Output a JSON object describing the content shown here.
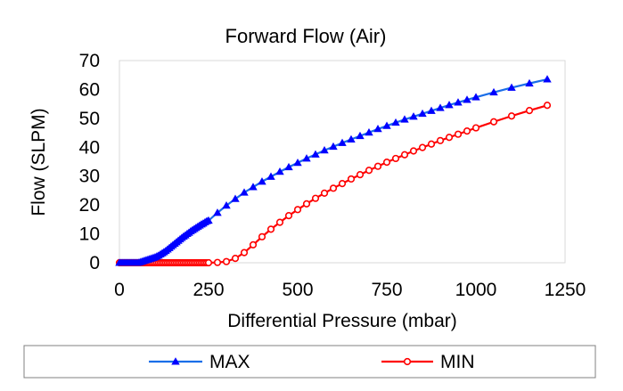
{
  "chart_data": {
    "type": "line",
    "title": "Forward Flow (Air)",
    "xlabel": "Differential Pressure (mbar)",
    "ylabel": "Flow (SLPM)",
    "xlim": [
      0,
      1250
    ],
    "ylim": [
      0,
      70
    ],
    "xticks": [
      0,
      250,
      500,
      750,
      1000,
      1250
    ],
    "yticks": [
      0,
      10,
      20,
      30,
      40,
      50,
      60,
      70
    ],
    "grid": false,
    "legend_position": "bottom",
    "series": [
      {
        "name": "MAX",
        "color": "#0000ff",
        "line_color": "#1a6ee8",
        "marker": "triangle",
        "x": [
          0,
          5,
          10,
          15,
          20,
          25,
          30,
          35,
          40,
          45,
          50,
          55,
          60,
          65,
          70,
          75,
          80,
          85,
          90,
          95,
          100,
          105,
          110,
          115,
          120,
          125,
          130,
          135,
          140,
          145,
          150,
          155,
          160,
          165,
          170,
          175,
          180,
          185,
          190,
          195,
          200,
          205,
          210,
          215,
          220,
          225,
          230,
          235,
          240,
          245,
          250,
          275,
          300,
          325,
          350,
          375,
          400,
          425,
          450,
          475,
          500,
          525,
          550,
          575,
          600,
          625,
          650,
          675,
          700,
          725,
          750,
          775,
          800,
          825,
          850,
          875,
          900,
          925,
          950,
          975,
          1000,
          1050,
          1100,
          1150,
          1200
        ],
        "y": [
          0,
          0,
          0,
          0,
          0,
          0,
          0,
          0,
          0,
          0,
          0,
          0.1,
          0.3,
          0.5,
          0.7,
          0.9,
          1.1,
          1.3,
          1.5,
          1.7,
          1.9,
          2.2,
          2.5,
          2.9,
          3.3,
          3.7,
          4.1,
          4.6,
          5.1,
          5.6,
          6.1,
          6.6,
          7.1,
          7.6,
          8.1,
          8.6,
          9.1,
          9.5,
          10.0,
          10.4,
          10.9,
          11.3,
          11.7,
          12.1,
          12.5,
          12.9,
          13.3,
          13.6,
          14.0,
          14.4,
          14.6,
          17.3,
          19.8,
          22.1,
          24.3,
          26.2,
          28.1,
          29.8,
          31.5,
          33.1,
          34.6,
          36.1,
          37.5,
          38.9,
          40.2,
          41.5,
          42.7,
          43.9,
          45.1,
          46.3,
          47.4,
          48.5,
          49.6,
          50.6,
          51.6,
          52.6,
          53.6,
          54.6,
          55.5,
          56.4,
          57.3,
          59.0,
          60.6,
          62.1,
          63.5
        ]
      },
      {
        "name": "MIN",
        "color": "#ff0000",
        "line_color": "#ff0000",
        "marker": "circle",
        "x": [
          0,
          5,
          10,
          15,
          20,
          25,
          30,
          35,
          40,
          45,
          50,
          55,
          60,
          65,
          70,
          75,
          80,
          85,
          90,
          95,
          100,
          105,
          110,
          115,
          120,
          125,
          130,
          135,
          140,
          145,
          150,
          155,
          160,
          165,
          170,
          175,
          180,
          185,
          190,
          195,
          200,
          205,
          210,
          215,
          220,
          225,
          230,
          235,
          240,
          245,
          250,
          275,
          300,
          325,
          350,
          375,
          400,
          425,
          450,
          475,
          500,
          525,
          550,
          575,
          600,
          625,
          650,
          675,
          700,
          725,
          750,
          775,
          800,
          825,
          850,
          875,
          900,
          925,
          950,
          975,
          1000,
          1050,
          1100,
          1150,
          1200
        ],
        "y": [
          0,
          0,
          0,
          0,
          0,
          0,
          0,
          0,
          0,
          0,
          0,
          0,
          0,
          0,
          0,
          0,
          0,
          0,
          0,
          0,
          0,
          0,
          0,
          0,
          0,
          0,
          0,
          0,
          0,
          0,
          0,
          0,
          0,
          0,
          0,
          0,
          0,
          0,
          0,
          0,
          0,
          0,
          0,
          0,
          0,
          0,
          0,
          0,
          0,
          0,
          0,
          0.1,
          0.4,
          1.5,
          3.5,
          6.2,
          9.0,
          11.6,
          14.0,
          16.3,
          18.4,
          20.4,
          22.3,
          24.1,
          25.8,
          27.4,
          29.0,
          30.5,
          32.0,
          33.4,
          34.8,
          36.1,
          37.4,
          38.7,
          39.9,
          41.1,
          42.3,
          43.4,
          44.5,
          45.6,
          46.7,
          48.8,
          50.8,
          52.7,
          54.5
        ]
      }
    ]
  }
}
